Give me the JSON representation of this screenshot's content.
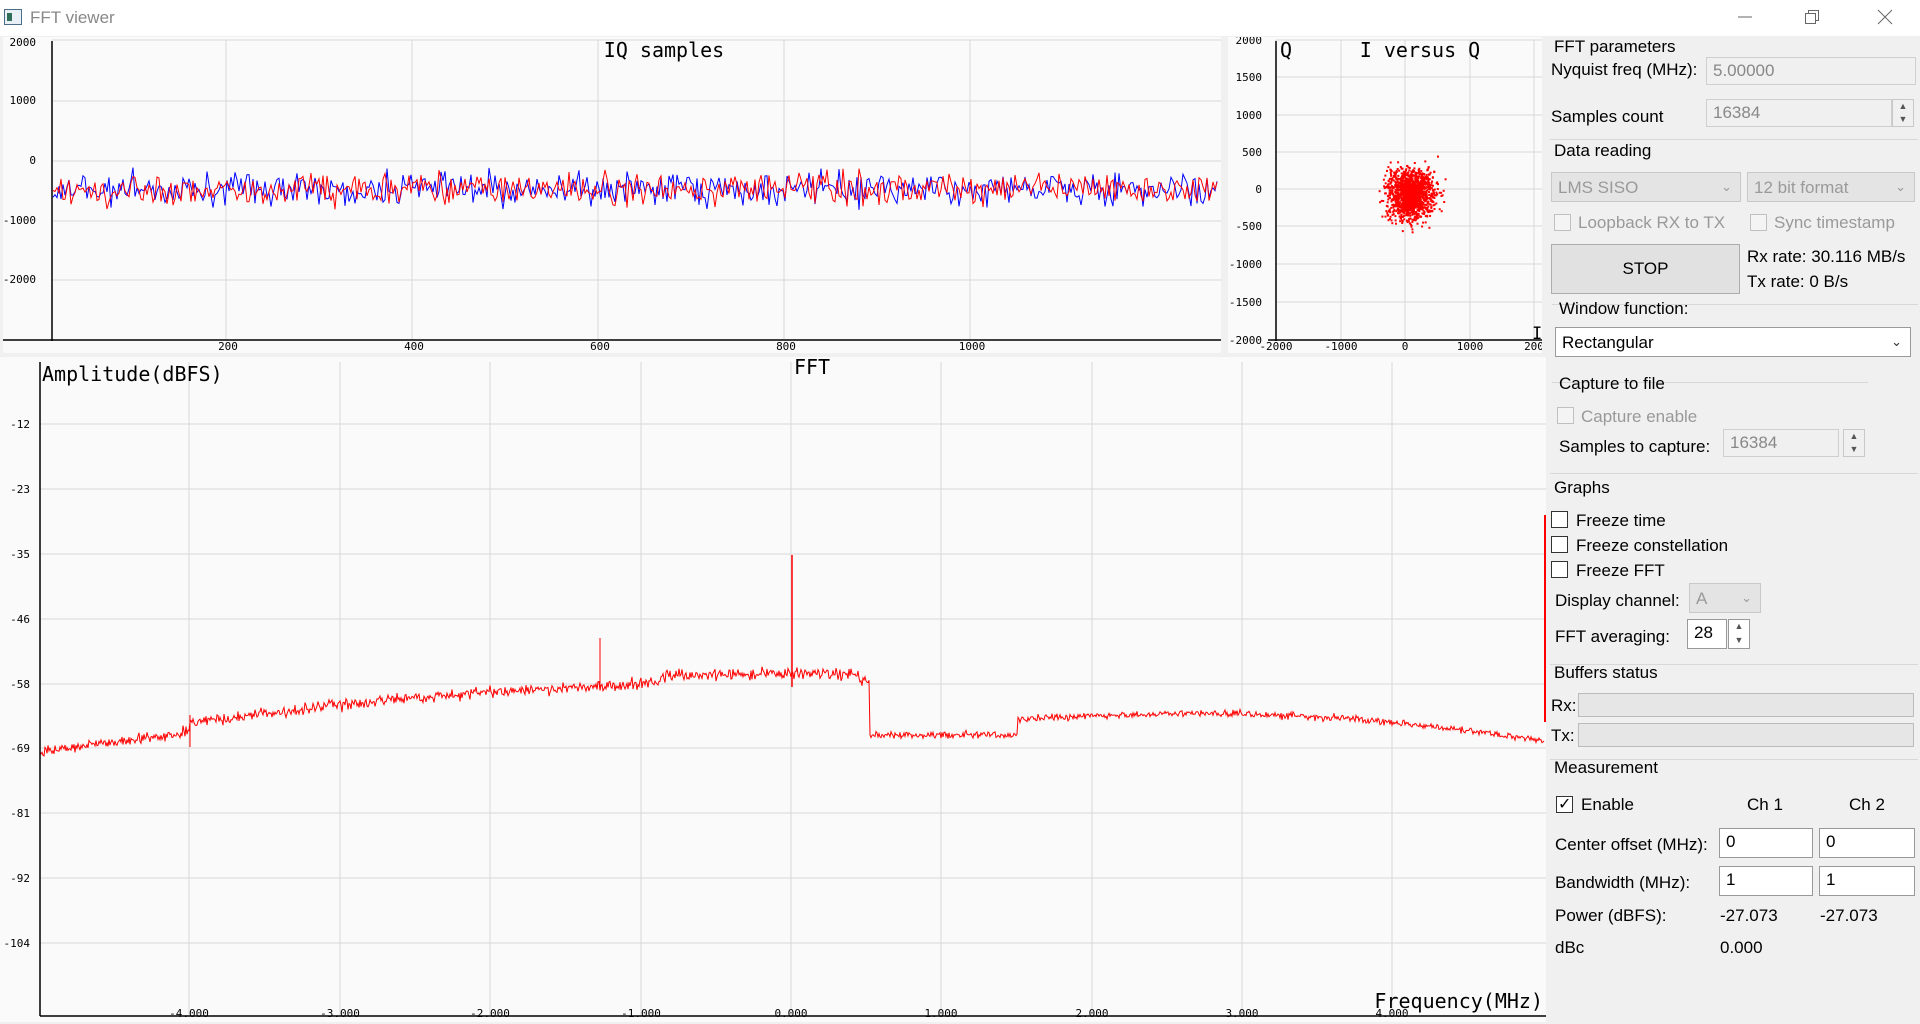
{
  "window": {
    "title": "FFT viewer",
    "icon": "app-icon",
    "controls": [
      "minimize-icon",
      "restore-icon",
      "close-icon"
    ]
  },
  "iq_plot": {
    "title": "IQ samples",
    "y_ticks": [
      "2000",
      "1000",
      "0",
      "-1000",
      "-2000"
    ],
    "x_ticks": [
      "200",
      "400",
      "600",
      "800",
      "1000"
    ],
    "colors": {
      "I": "#ff0000",
      "Q": "#0000ff"
    }
  },
  "constellation_plot": {
    "title": "I versus Q",
    "y_axis_label": "Q",
    "y_ticks": [
      "2000",
      "1500",
      "1000",
      "500",
      "0",
      "-500",
      "-1000",
      "-1500",
      "-2000"
    ],
    "x_ticks": [
      "-2000",
      "-1000",
      "0",
      "1000",
      "200"
    ],
    "point_color": "#ff0000"
  },
  "fft_plot": {
    "title": "FFT",
    "y_axis_label": "Amplitude(dBFS)",
    "x_axis_label": "Frequency(MHz)",
    "y_ticks": [
      "-12",
      "-23",
      "-35",
      "-46",
      "-58",
      "-69",
      "-81",
      "-92",
      "-104"
    ],
    "x_ticks": [
      "-4.000",
      "-3.000",
      "-2.000",
      "-1.000",
      "0.000",
      "1.000",
      "2.000",
      "3.000",
      "4.000"
    ],
    "trace_color": "#ff0000"
  },
  "panel": {
    "fft_params": {
      "heading": "FFT parameters",
      "nyquist_label": "Nyquist freq (MHz):",
      "nyquist_value": "5.00000",
      "samples_label": "Samples count",
      "samples_value": "16384"
    },
    "data_reading": {
      "heading": "Data reading",
      "source": "LMS SISO",
      "format": "12 bit format",
      "loopback_label": "Loopback RX to TX",
      "sync_label": "Sync timestamp",
      "stop_label": "STOP",
      "rx_rate": "Rx rate: 30.116 MB/s",
      "tx_rate": "Tx rate:  0 B/s"
    },
    "window_function": {
      "heading": "Window function:",
      "value": "Rectangular"
    },
    "capture": {
      "heading": "Capture to file",
      "enable_label": "Capture enable",
      "samples_label": "Samples to capture:",
      "samples_value": "16384"
    },
    "graphs": {
      "heading": "Graphs",
      "freeze_time": "Freeze time",
      "freeze_constellation": "Freeze constellation",
      "freeze_fft": "Freeze FFT",
      "display_channel_label": "Display channel:",
      "display_channel_value": "A",
      "averaging_label": "FFT averaging:",
      "averaging_value": "28"
    },
    "buffers": {
      "heading": "Buffers status",
      "rx_label": "Rx:",
      "tx_label": "Tx:"
    },
    "measurement": {
      "heading": "Measurement",
      "enable_label": "Enable",
      "ch1": "Ch 1",
      "ch2": "Ch 2",
      "center_offset_label": "Center offset (MHz):",
      "center_offset_ch1": "0",
      "center_offset_ch2": "0",
      "bandwidth_label": "Bandwidth (MHz):",
      "bandwidth_ch1": "1",
      "bandwidth_ch2": "1",
      "power_label": "Power (dBFS):",
      "power_ch1": "-27.073",
      "power_ch2": "-27.073",
      "dbc_label": "dBc",
      "dbc_value": "0.000"
    }
  }
}
